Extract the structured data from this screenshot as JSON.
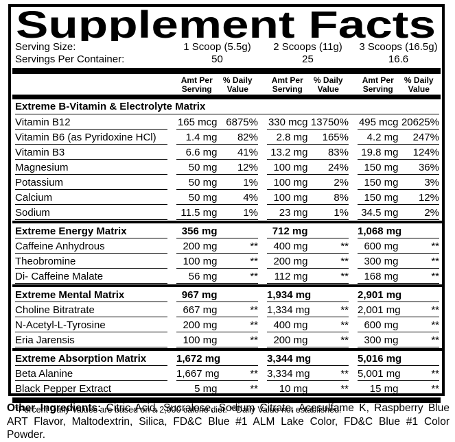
{
  "title": "Supplement Facts",
  "serving": {
    "size_label": "Serving Size:",
    "per_container_label": "Servings Per Container:",
    "columns": [
      {
        "size": "1 Scoop (5.5g)",
        "servings": "50"
      },
      {
        "size": "2 Scoops (11g)",
        "servings": "25"
      },
      {
        "size": "3 Scoops (16.5g)",
        "servings": "16.6"
      }
    ]
  },
  "table": {
    "headers": {
      "amt": "Amt Per\nServing",
      "dv": "% Daily\nValue"
    }
  },
  "sections": [
    {
      "title": "Extreme B-Vitamin & Electrolyte Matrix",
      "title_amounts": null,
      "rows": [
        {
          "name": "Vitamin B12",
          "cells": [
            [
              "165 mcg",
              "6875%"
            ],
            [
              "330 mcg",
              "13750%"
            ],
            [
              "495 mcg",
              "20625%"
            ]
          ]
        },
        {
          "name": "Vitamin B6 (as Pyridoxine HCl)",
          "cells": [
            [
              "1.4 mg",
              "82%"
            ],
            [
              "2.8 mg",
              "165%"
            ],
            [
              "4.2 mg",
              "247%"
            ]
          ]
        },
        {
          "name": "Vitamin B3",
          "cells": [
            [
              "6.6 mg",
              "41%"
            ],
            [
              "13.2 mg",
              "83%"
            ],
            [
              "19.8 mg",
              "124%"
            ]
          ]
        },
        {
          "name": "Magnesium",
          "cells": [
            [
              "50 mg",
              "12%"
            ],
            [
              "100 mg",
              "24%"
            ],
            [
              "150 mg",
              "36%"
            ]
          ]
        },
        {
          "name": "Potassium",
          "cells": [
            [
              "50 mg",
              "1%"
            ],
            [
              "100 mg",
              "2%"
            ],
            [
              "150 mg",
              "3%"
            ]
          ]
        },
        {
          "name": "Calcium",
          "cells": [
            [
              "50 mg",
              "4%"
            ],
            [
              "100 mg",
              "8%"
            ],
            [
              "150 mg",
              "12%"
            ]
          ]
        },
        {
          "name": "Sodium",
          "cells": [
            [
              "11.5 mg",
              "1%"
            ],
            [
              "23 mg",
              "1%"
            ],
            [
              "34.5 mg",
              "2%"
            ]
          ]
        }
      ]
    },
    {
      "title": "Extreme Energy Matrix",
      "title_amounts": [
        "356 mg",
        "712 mg",
        "1,068 mg"
      ],
      "rows": [
        {
          "name": "Caffeine Anhydrous",
          "cells": [
            [
              "200 mg",
              "**"
            ],
            [
              "400 mg",
              "**"
            ],
            [
              "600 mg",
              "**"
            ]
          ]
        },
        {
          "name": "Theobromine",
          "cells": [
            [
              "100 mg",
              "**"
            ],
            [
              "200 mg",
              "**"
            ],
            [
              "300 mg",
              "**"
            ]
          ]
        },
        {
          "name": "Di- Caffeine Malate",
          "cells": [
            [
              "56 mg",
              "**"
            ],
            [
              "112 mg",
              "**"
            ],
            [
              "168 mg",
              "**"
            ]
          ]
        }
      ]
    },
    {
      "title": "Extreme Mental Matrix",
      "title_amounts": [
        "967 mg",
        "1,934 mg",
        "2,901 mg"
      ],
      "rows": [
        {
          "name": "Choline Bitratrate",
          "cells": [
            [
              "667 mg",
              "**"
            ],
            [
              "1,334 mg",
              "**"
            ],
            [
              "2,001 mg",
              "**"
            ]
          ]
        },
        {
          "name": "N-Acetyl-L-Tyrosine",
          "cells": [
            [
              "200 mg",
              "**"
            ],
            [
              "400 mg",
              "**"
            ],
            [
              "600 mg",
              "**"
            ]
          ]
        },
        {
          "name": "Eria Jarensis",
          "cells": [
            [
              "100 mg",
              "**"
            ],
            [
              "200 mg",
              "**"
            ],
            [
              "300 mg",
              "**"
            ]
          ]
        }
      ]
    },
    {
      "title": "Extreme Absorption Matrix",
      "title_amounts": [
        "1,672 mg",
        "3,344 mg",
        "5,016 mg"
      ],
      "rows": [
        {
          "name": "Beta Alanine",
          "cells": [
            [
              "1,667 mg",
              "**"
            ],
            [
              "3,334 mg",
              "**"
            ],
            [
              "5,001 mg",
              "**"
            ]
          ]
        },
        {
          "name": "Black Pepper Extract",
          "cells": [
            [
              "5 mg",
              "**"
            ],
            [
              "10 mg",
              "**"
            ],
            [
              "15 mg",
              "**"
            ]
          ]
        }
      ]
    }
  ],
  "footnote": "*Percent Daily Values are based on a 2,000 calorie diet. **Daily Value not established.",
  "other_ingredients": {
    "label": "Other Ingredients:",
    "text": "Citric Acid, Sucralose, Sodium Citrate, Acesulfame K, Raspberry Blue ART Flavor, Maltodextrin, Silica, FD&C Blue #1 ALM Lake Color, FD&C Blue #1 Color Powder."
  }
}
